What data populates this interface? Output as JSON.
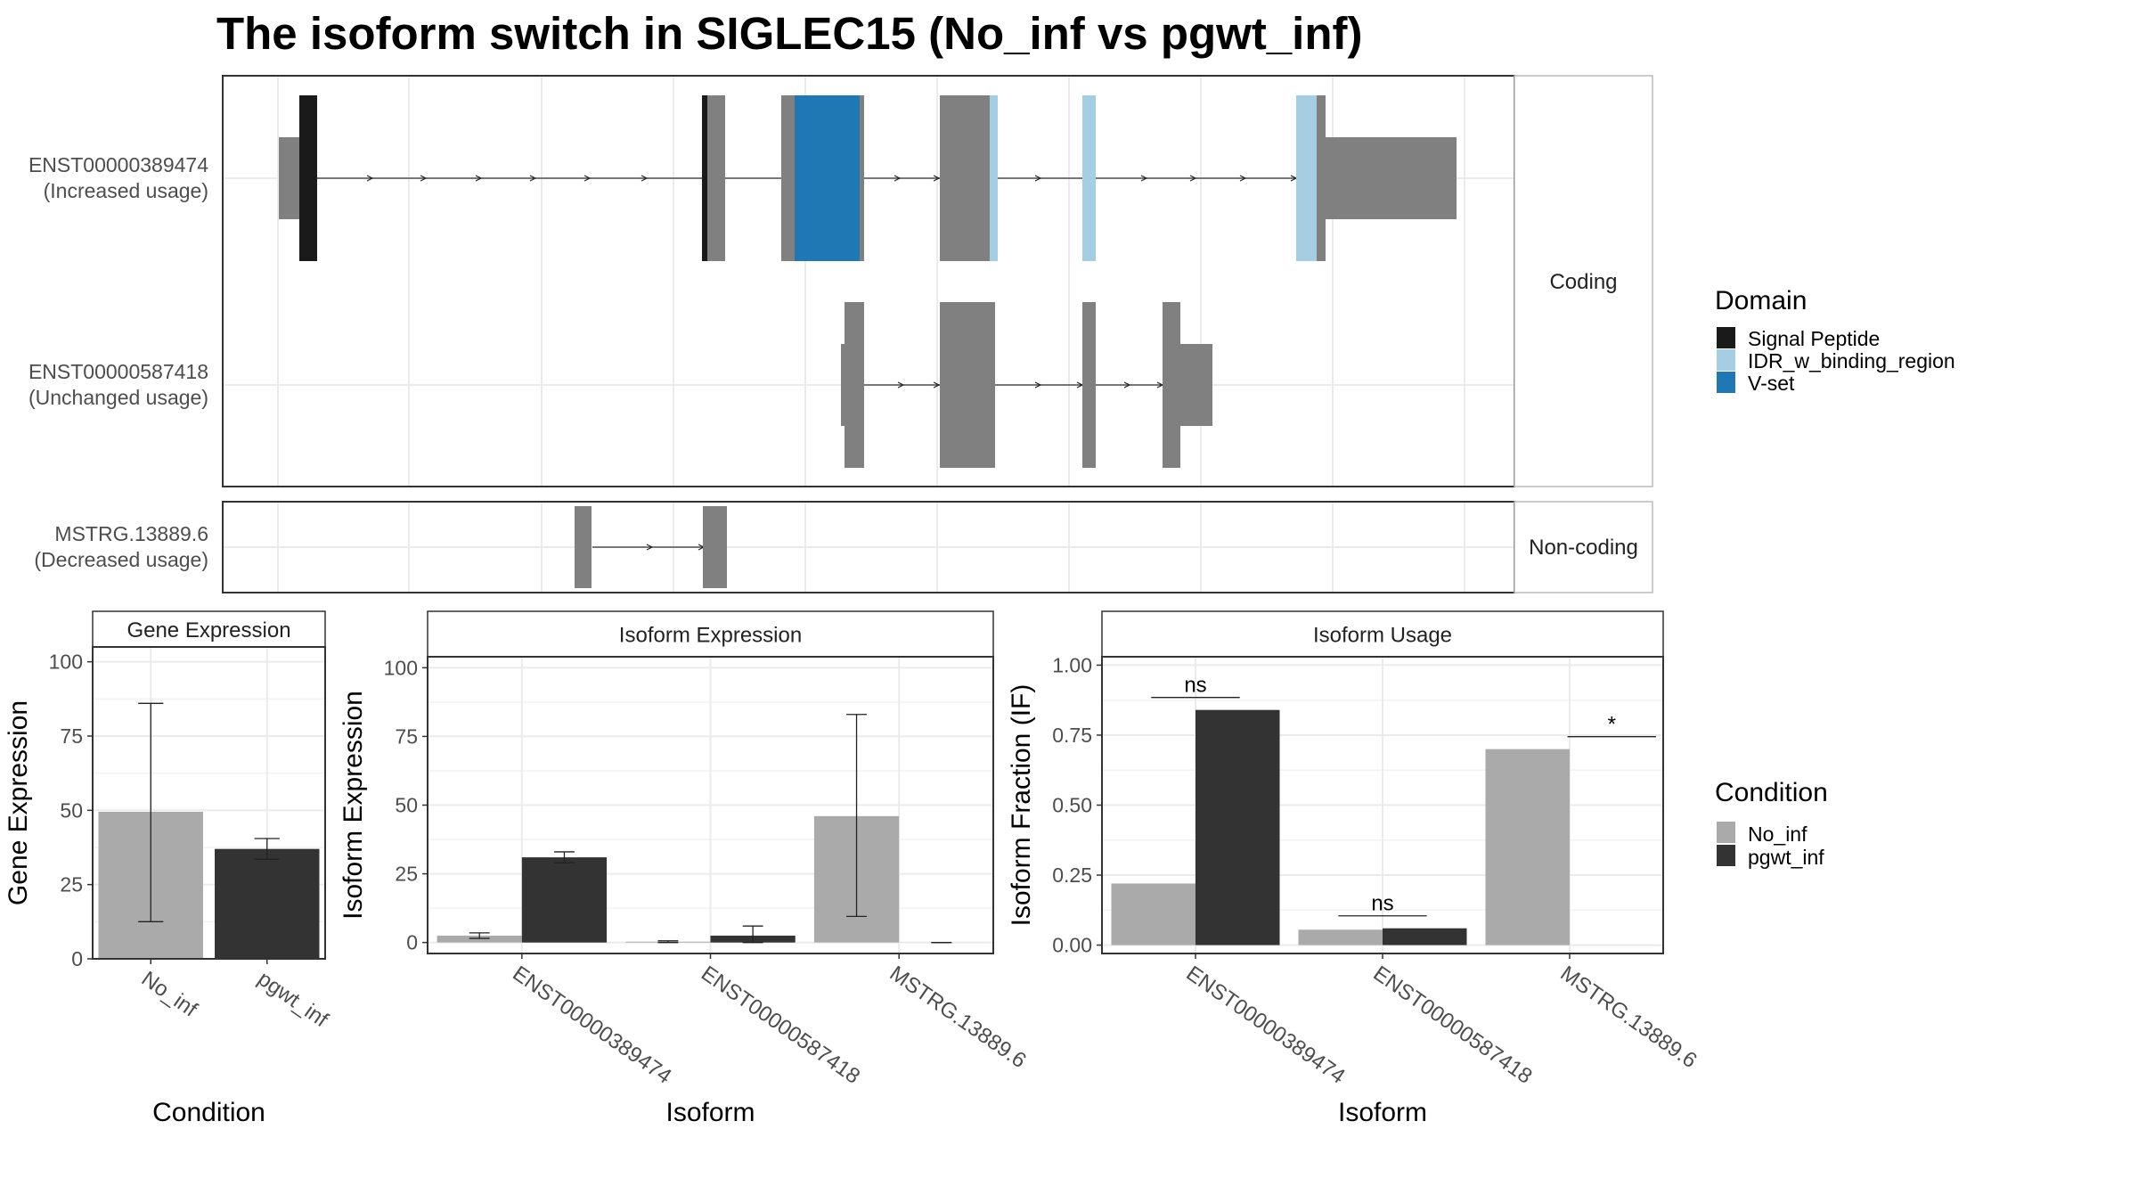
{
  "chart_data": [
    {
      "type": "gene-structure",
      "title": "The isoform switch in SIGLEC15 (No_inf vs pgwt_inf)",
      "facets": [
        "Coding",
        "Non-coding"
      ],
      "transcripts": [
        {
          "id": "ENST00000389474",
          "usage": "(Increased usage)",
          "coding": true
        },
        {
          "id": "ENST00000587418",
          "usage": "(Unchanged usage)",
          "coding": true
        },
        {
          "id": "MSTRG.13889.6",
          "usage": "(Decreased usage)",
          "coding": false
        }
      ],
      "domain_legend": {
        "title": "Domain",
        "items": [
          {
            "label": "Signal Peptide",
            "color": "#1a1a1a"
          },
          {
            "label": "IDR_w_binding_region",
            "color": "#a6cee3"
          },
          {
            "label": "V-set",
            "color": "#1f78b4"
          }
        ]
      }
    },
    {
      "type": "bar",
      "panel": "Gene Expression",
      "xlabel": "Condition",
      "ylabel": "Gene Expression",
      "ylim": [
        0,
        105
      ],
      "yticks": [
        0,
        25,
        50,
        75,
        100
      ],
      "categories": [
        "No_inf",
        "pgwt_inf"
      ],
      "values": [
        49.5,
        37
      ],
      "errors": [
        [
          12.5,
          86
        ],
        [
          33.5,
          40.5
        ]
      ],
      "colors": [
        "#aaaaaa",
        "#333333"
      ]
    },
    {
      "type": "bar",
      "panel": "Isoform Expression",
      "xlabel": "Isoform",
      "ylabel": "Isoform Expression",
      "ylim": [
        -4,
        104
      ],
      "yticks": [
        0,
        25,
        50,
        75,
        100
      ],
      "categories": [
        "ENST00000389474",
        "ENST00000587418",
        "MSTRG.13889.6"
      ],
      "series": [
        {
          "name": "No_inf",
          "values": [
            2.5,
            0.3,
            46
          ],
          "errors": [
            [
              1.5,
              3.5
            ],
            [
              0,
              0.6
            ],
            [
              9.5,
              83
            ]
          ]
        },
        {
          "name": "pgwt_inf",
          "values": [
            31,
            2.5,
            0
          ],
          "errors": [
            [
              29,
              33
            ],
            [
              0,
              6
            ],
            [
              0,
              0
            ]
          ]
        }
      ]
    },
    {
      "type": "bar",
      "panel": "Isoform Usage",
      "xlabel": "Isoform",
      "ylabel": "Isoform Fraction (IF)",
      "ylim": [
        -0.03,
        1.03
      ],
      "yticks": [
        "0.00",
        "0.25",
        "0.50",
        "0.75",
        "1.00"
      ],
      "categories": [
        "ENST00000389474",
        "ENST00000587418",
        "MSTRG.13889.6"
      ],
      "series": [
        {
          "name": "No_inf",
          "values": [
            0.22,
            0.055,
            0.7
          ]
        },
        {
          "name": "pgwt_inf",
          "values": [
            0.84,
            0.06,
            0
          ]
        }
      ],
      "significance": [
        "ns",
        "ns",
        "*"
      ]
    }
  ],
  "condition_legend": {
    "title": "Condition",
    "items": [
      {
        "label": "No_inf",
        "color": "#aaaaaa"
      },
      {
        "label": "pgwt_inf",
        "color": "#333333"
      }
    ]
  }
}
